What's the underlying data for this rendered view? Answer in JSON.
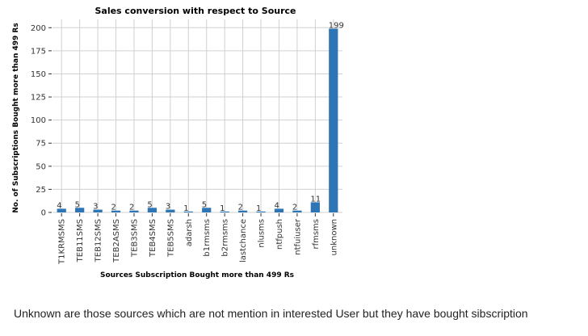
{
  "chart_data": {
    "type": "bar",
    "title": "Sales conversion with respect to Source",
    "xlabel": "Sources Subscription Bought more than 499 Rs",
    "ylabel": "No. of Subscriptions Bought more than 499 Rs",
    "categories": [
      "T1KRMSMS",
      "TEB11SMS",
      "TEB12SMS",
      "TEB2ASMS",
      "TEB3SMS",
      "TEB4SMS",
      "TEB5SMS",
      "adarsh",
      "b1rmsms",
      "b2rmsms",
      "lastchance",
      "nlusms",
      "ntfpush",
      "ntfuiuser",
      "rfmsms",
      "unknown"
    ],
    "values": [
      4,
      5,
      3,
      2,
      2,
      5,
      3,
      1,
      5,
      1,
      2,
      1,
      4,
      2,
      11,
      199
    ],
    "data_labels": [
      "4",
      "5",
      "3",
      "2",
      "2",
      "5",
      "3",
      "1",
      "5",
      "1",
      "2",
      "1",
      "4",
      "2",
      "11",
      "199"
    ],
    "yticks": [
      0,
      25,
      50,
      75,
      100,
      125,
      150,
      175,
      200
    ],
    "ylim": [
      0,
      209
    ],
    "grid": true,
    "bar_color": "#2e75b6"
  },
  "caption": "Unknown are those sources which are not mention in interested User but they have bought sibscription"
}
